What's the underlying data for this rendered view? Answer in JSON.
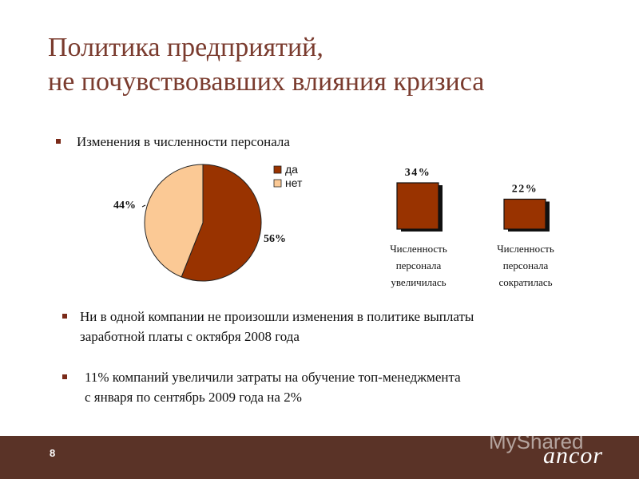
{
  "title": {
    "line1": "Политика предприятий,",
    "line2": "не почувствовавших влияния кризиса"
  },
  "bullets": {
    "b1": "Изменения в численности персонала",
    "b2_line1": "Ни в одной компании не произошли изменения в политике выплаты",
    "b2_line2": "заработной платы с октября 2008 года",
    "b3_line1": "11% компаний увеличили затраты на обучение топ-менеджмента",
    "b3_line2": "с января по сентябрь 2009 года на 2%"
  },
  "chart_data": [
    {
      "type": "pie",
      "categories": [
        "да",
        "нет"
      ],
      "values": [
        56,
        44
      ],
      "data_labels": [
        "56%",
        "44%"
      ],
      "legend": "right",
      "colors": [
        "#993300",
        "#fbc995"
      ]
    },
    {
      "type": "bar",
      "categories": [
        [
          "Численность",
          "персонала",
          "увеличилась"
        ],
        [
          "Численность",
          "персонала",
          "сократилась"
        ]
      ],
      "values": [
        34,
        22
      ],
      "data_labels": [
        "34%",
        "22%"
      ],
      "colors": [
        "#993300"
      ]
    }
  ],
  "footer": {
    "page_number": "8",
    "logo": "ancor",
    "watermark": "MyShared"
  }
}
